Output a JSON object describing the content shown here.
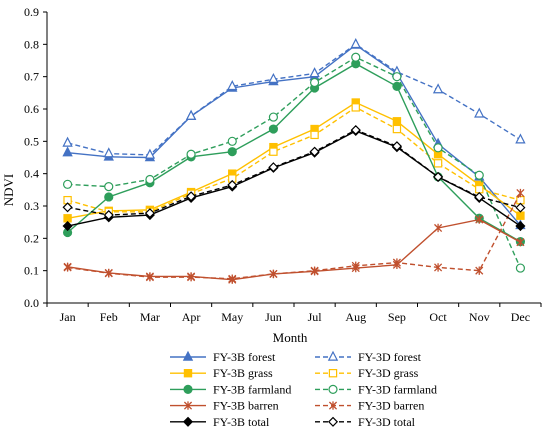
{
  "chart_data": {
    "type": "line",
    "xlabel": "Month",
    "ylabel": "NDVI",
    "ylim": [
      0,
      0.9
    ],
    "yticks": [
      "0.0",
      "0.1",
      "0.2",
      "0.3",
      "0.4",
      "0.5",
      "0.6",
      "0.7",
      "0.8",
      "0.9"
    ],
    "categories": [
      "Jan",
      "Feb",
      "Mar",
      "Apr",
      "May",
      "Jun",
      "Jul",
      "Aug",
      "Sep",
      "Oct",
      "Nov",
      "Dec"
    ],
    "grid": false,
    "legend_position": "bottom",
    "series": [
      {
        "name": "FY-3B forest",
        "color": "#4472C4",
        "dash": "solid",
        "marker": "triangle",
        "filled": true,
        "values": [
          0.465,
          0.452,
          0.45,
          0.578,
          0.665,
          0.685,
          0.7,
          0.798,
          0.71,
          0.492,
          0.39,
          0.24
        ]
      },
      {
        "name": "FY-3D forest",
        "color": "#4472C4",
        "dash": "dashed",
        "marker": "triangle",
        "filled": false,
        "values": [
          0.495,
          0.462,
          0.458,
          0.578,
          0.67,
          0.692,
          0.71,
          0.8,
          0.715,
          0.66,
          0.585,
          0.505
        ]
      },
      {
        "name": "FY-3B grass",
        "color": "#FFC000",
        "dash": "solid",
        "marker": "square",
        "filled": true,
        "values": [
          0.262,
          0.285,
          0.288,
          0.343,
          0.4,
          0.482,
          0.538,
          0.62,
          0.562,
          0.46,
          0.365,
          0.27
        ]
      },
      {
        "name": "FY-3D grass",
        "color": "#FFC000",
        "dash": "dashed",
        "marker": "square",
        "filled": false,
        "values": [
          0.318,
          0.282,
          0.282,
          0.338,
          0.385,
          0.468,
          0.52,
          0.605,
          0.538,
          0.432,
          0.352,
          0.318
        ]
      },
      {
        "name": "FY-3B farmland",
        "color": "#2E9E5B",
        "dash": "solid",
        "marker": "circle",
        "filled": true,
        "values": [
          0.218,
          0.328,
          0.372,
          0.452,
          0.468,
          0.538,
          0.665,
          0.74,
          0.67,
          0.39,
          0.262,
          0.19
        ]
      },
      {
        "name": "FY-3D farmland",
        "color": "#2E9E5B",
        "dash": "dashed",
        "marker": "circle",
        "filled": false,
        "values": [
          0.367,
          0.36,
          0.382,
          0.46,
          0.5,
          0.575,
          0.682,
          0.76,
          0.7,
          0.48,
          0.395,
          0.108
        ]
      },
      {
        "name": "FY-3B barren",
        "color": "#C0502E",
        "dash": "solid",
        "marker": "asterisk",
        "filled": true,
        "values": [
          0.112,
          0.093,
          0.082,
          0.082,
          0.072,
          0.09,
          0.098,
          0.108,
          0.118,
          0.232,
          0.258,
          0.188
        ]
      },
      {
        "name": "FY-3D barren",
        "color": "#C0502E",
        "dash": "dashed",
        "marker": "asterisk",
        "filled": false,
        "values": [
          0.11,
          0.092,
          0.08,
          0.08,
          0.075,
          0.09,
          0.1,
          0.115,
          0.125,
          0.11,
          0.1,
          0.34
        ]
      },
      {
        "name": "FY-3B total",
        "color": "#000000",
        "dash": "solid",
        "marker": "diamond",
        "filled": true,
        "values": [
          0.238,
          0.265,
          0.272,
          0.325,
          0.36,
          0.418,
          0.465,
          0.532,
          0.482,
          0.39,
          0.325,
          0.238
        ]
      },
      {
        "name": "FY-3D total",
        "color": "#000000",
        "dash": "dashed",
        "marker": "diamond",
        "filled": false,
        "values": [
          0.296,
          0.272,
          0.278,
          0.33,
          0.365,
          0.42,
          0.468,
          0.535,
          0.485,
          0.39,
          0.328,
          0.295
        ]
      }
    ]
  }
}
